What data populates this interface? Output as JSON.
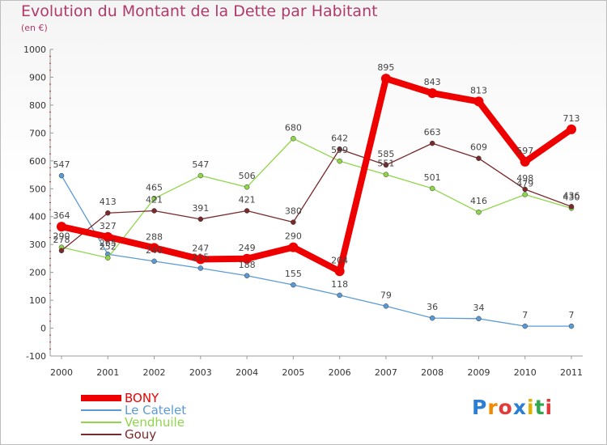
{
  "title": "Evolution du Montant de la Dette par Habitant",
  "subtitle": "(en €)",
  "logo_text": "Proxiti",
  "chart_data": {
    "type": "line",
    "title": "Evolution du Montant de la Dette par Habitant",
    "ylabel": "(en €)",
    "xlabel": "",
    "x": [
      "2000",
      "2001",
      "2002",
      "2003",
      "2004",
      "2005",
      "2006",
      "2007",
      "2008",
      "2009",
      "2010",
      "2011"
    ],
    "ylim": [
      -100,
      1000
    ],
    "yticks": [
      -100,
      0,
      100,
      200,
      300,
      400,
      500,
      600,
      700,
      800,
      900,
      1000
    ],
    "grid": false,
    "legend_position": "bottom-left",
    "series": [
      {
        "name": "BONY",
        "color": "#ee0000",
        "values": [
          364,
          327,
          288,
          247,
          249,
          290,
          204,
          895,
          843,
          813,
          597,
          713
        ]
      },
      {
        "name": "Le Catelet",
        "color": "#5b9bd5",
        "values": [
          547,
          265,
          240,
          215,
          188,
          155,
          118,
          79,
          36,
          34,
          7,
          7
        ]
      },
      {
        "name": "Vendhuile",
        "color": "#8fd64a",
        "values": [
          290,
          252,
          465,
          547,
          506,
          680,
          599,
          551,
          501,
          416,
          479,
          430
        ]
      },
      {
        "name": "Gouy",
        "color": "#7a2a2a",
        "values": [
          278,
          413,
          421,
          391,
          421,
          380,
          642,
          585,
          663,
          609,
          498,
          436
        ]
      }
    ]
  }
}
